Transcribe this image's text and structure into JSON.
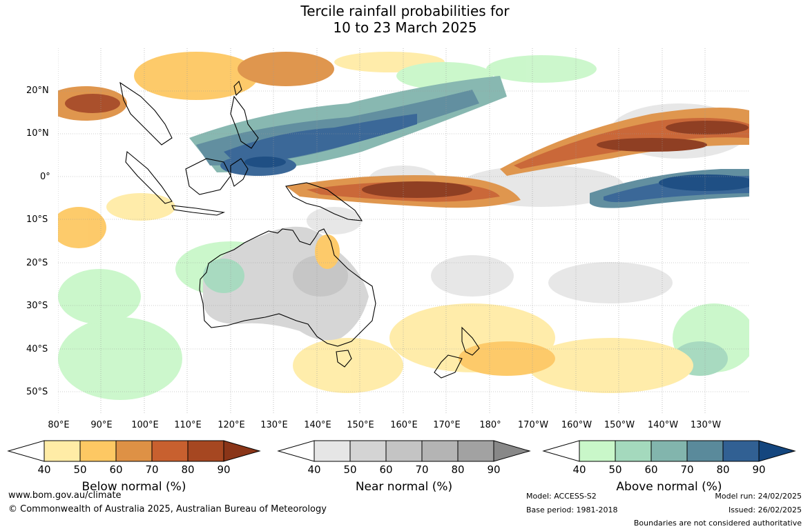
{
  "title_line1": "Tercile rainfall probabilities for",
  "title_line2": "10 to 23 March 2025",
  "lat_labels": [
    "20°N",
    "10°N",
    "0°",
    "10°S",
    "20°S",
    "30°S",
    "40°S",
    "50°S"
  ],
  "lon_labels": [
    "80°E",
    "90°E",
    "100°E",
    "110°E",
    "120°E",
    "130°E",
    "140°E",
    "150°E",
    "160°E",
    "170°E",
    "180°",
    "170°W",
    "160°W",
    "150°W",
    "140°W",
    "130°W"
  ],
  "colorbars": [
    {
      "title": "Below normal (%)",
      "ticks": [
        "40",
        "50",
        "60",
        "70",
        "80",
        "90"
      ],
      "colors": [
        "#ffeca6",
        "#fdc863",
        "#de9145",
        "#c8602f",
        "#a64721",
        "#8a3518"
      ]
    },
    {
      "title": "Near normal (%)",
      "ticks": [
        "40",
        "50",
        "60",
        "70",
        "80",
        "90"
      ],
      "colors": [
        "#e6e6e6",
        "#d4d4d4",
        "#c4c4c4",
        "#b4b4b4",
        "#a2a2a2",
        "#888888"
      ]
    },
    {
      "title": "Above normal (%)",
      "ticks": [
        "40",
        "50",
        "60",
        "70",
        "80",
        "90"
      ],
      "colors": [
        "#c9f7c9",
        "#a4d9bd",
        "#82b5ad",
        "#5a8a9b",
        "#316093",
        "#14467e"
      ]
    }
  ],
  "footer": {
    "url": "www.bom.gov.au/climate",
    "copyright": "© Commonwealth of Australia 2025, Australian Bureau of Meteorology",
    "model": "Model: ACCESS-S2",
    "base_period": "Base period: 1981-2018",
    "model_run": "Model run: 24/02/2025",
    "issued": "Issued: 26/02/2025",
    "disclaimer": "Boundaries are not considered authoritative"
  }
}
